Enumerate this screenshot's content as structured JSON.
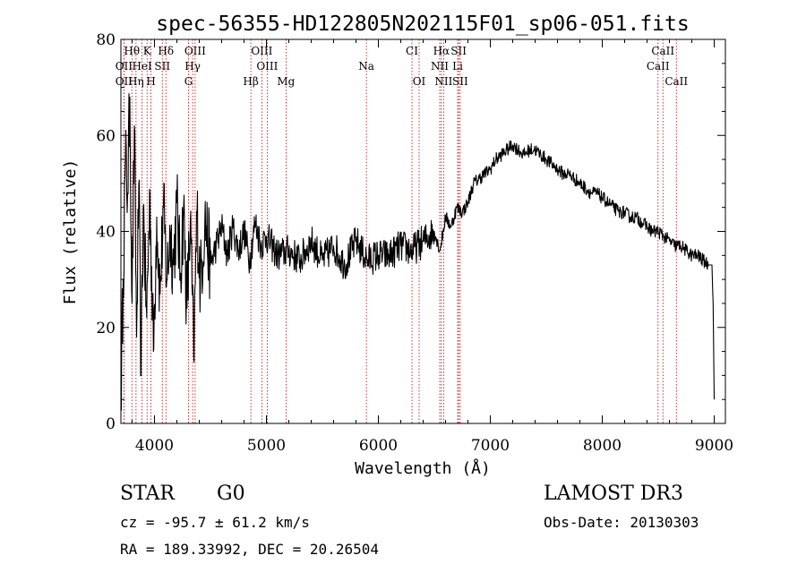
{
  "chart_data": {
    "type": "line",
    "title": "spec-56355-HD122805N202115F01_sp06-051.fits",
    "xlabel": "Wavelength (Å)",
    "ylabel": "Flux (relative)",
    "xlim": [
      3700,
      9100
    ],
    "ylim": [
      0,
      80
    ],
    "xticks": [
      4000,
      5000,
      6000,
      7000,
      8000,
      9000
    ],
    "yticks": [
      0,
      20,
      40,
      60,
      80
    ],
    "series": [
      {
        "name": "flux",
        "x": [
          3700,
          3720,
          3740,
          3760,
          3780,
          3800,
          3820,
          3840,
          3860,
          3880,
          3900,
          3930,
          3960,
          3990,
          4020,
          4050,
          4080,
          4110,
          4140,
          4170,
          4200,
          4230,
          4260,
          4290,
          4320,
          4350,
          4380,
          4410,
          4450,
          4500,
          4550,
          4600,
          4650,
          4700,
          4750,
          4800,
          4850,
          4900,
          4950,
          5000,
          5100,
          5200,
          5300,
          5400,
          5500,
          5600,
          5700,
          5800,
          5900,
          6000,
          6100,
          6200,
          6300,
          6400,
          6500,
          6550,
          6600,
          6650,
          6700,
          6750,
          6800,
          6850,
          6900,
          6950,
          7000,
          7050,
          7100,
          7150,
          7200,
          7250,
          7300,
          7350,
          7400,
          7450,
          7500,
          7550,
          7600,
          7650,
          7700,
          7750,
          7800,
          7850,
          7900,
          7950,
          8000,
          8050,
          8100,
          8150,
          8200,
          8250,
          8300,
          8350,
          8400,
          8450,
          8500,
          8550,
          8600,
          8650,
          8700,
          8750,
          8800,
          8850,
          8900,
          8950,
          8980,
          8990,
          9000
        ],
        "values": [
          5,
          30,
          55,
          48,
          68,
          25,
          62,
          18,
          50,
          10,
          45,
          22,
          48,
          15,
          43,
          27,
          45,
          30,
          40,
          33,
          46,
          31,
          45,
          24,
          42,
          14,
          44,
          29,
          43,
          33,
          37,
          41,
          35,
          41,
          36,
          40,
          34,
          42,
          37,
          39,
          35,
          36,
          34,
          38,
          34,
          37,
          33,
          38,
          34,
          35,
          35,
          37,
          36,
          38,
          40,
          36,
          43,
          41,
          45,
          44,
          46,
          50,
          51,
          52,
          53,
          55,
          56,
          57,
          58,
          57,
          56,
          57,
          57,
          56,
          55,
          54,
          53,
          52,
          52,
          51,
          50,
          49,
          48,
          48,
          47,
          46,
          45,
          44,
          44,
          43,
          43,
          42,
          41,
          40,
          40,
          39,
          38,
          37,
          37,
          36,
          35,
          35,
          34,
          33,
          33,
          25,
          5
        ]
      }
    ],
    "emission_lines": [
      {
        "label": "Hθ",
        "x": 3798,
        "row": 1
      },
      {
        "label": "K",
        "x": 3934,
        "row": 1
      },
      {
        "label": "Hδ",
        "x": 4102,
        "row": 1
      },
      {
        "label": "OIII",
        "x": 4363,
        "row": 1
      },
      {
        "label": "OIII",
        "x": 4959,
        "row": 1
      },
      {
        "label": "CI",
        "x": 6300,
        "row": 1
      },
      {
        "label": "Hα",
        "x": 6563,
        "row": 1
      },
      {
        "label": "SII",
        "x": 6717,
        "row": 1
      },
      {
        "label": "CaII",
        "x": 8542,
        "row": 1
      },
      {
        "label": "OII",
        "x": 3727,
        "row": 2
      },
      {
        "label": "HeI",
        "x": 3889,
        "row": 2
      },
      {
        "label": "SII",
        "x": 4070,
        "row": 2
      },
      {
        "label": "Hγ",
        "x": 4341,
        "row": 2
      },
      {
        "label": "OIII",
        "x": 5007,
        "row": 2
      },
      {
        "label": "Na",
        "x": 5893,
        "row": 2
      },
      {
        "label": "NII",
        "x": 6548,
        "row": 2
      },
      {
        "label": "Li",
        "x": 6708,
        "row": 2
      },
      {
        "label": "CaII",
        "x": 8498,
        "row": 2
      },
      {
        "label": "OII",
        "x": 3727,
        "row": 3
      },
      {
        "label": "Hη",
        "x": 3835,
        "row": 3
      },
      {
        "label": "H",
        "x": 3969,
        "row": 3
      },
      {
        "label": "G",
        "x": 4304,
        "row": 3
      },
      {
        "label": "Hβ",
        "x": 4861,
        "row": 3
      },
      {
        "label": "Mg",
        "x": 5175,
        "row": 3
      },
      {
        "label": "OI",
        "x": 6364,
        "row": 3
      },
      {
        "label": "NII",
        "x": 6583,
        "row": 3
      },
      {
        "label": "SII",
        "x": 6731,
        "row": 3
      },
      {
        "label": "CaII",
        "x": 8662,
        "row": 3
      }
    ]
  },
  "info": {
    "object_class": "STAR",
    "subclass": "G0",
    "survey": "LAMOST DR3",
    "cz": "cz = -95.7 ± 61.2 km/s",
    "obs_date": "Obs-Date: 20130303",
    "coords": "RA = 189.33992, DEC =  20.26504"
  }
}
